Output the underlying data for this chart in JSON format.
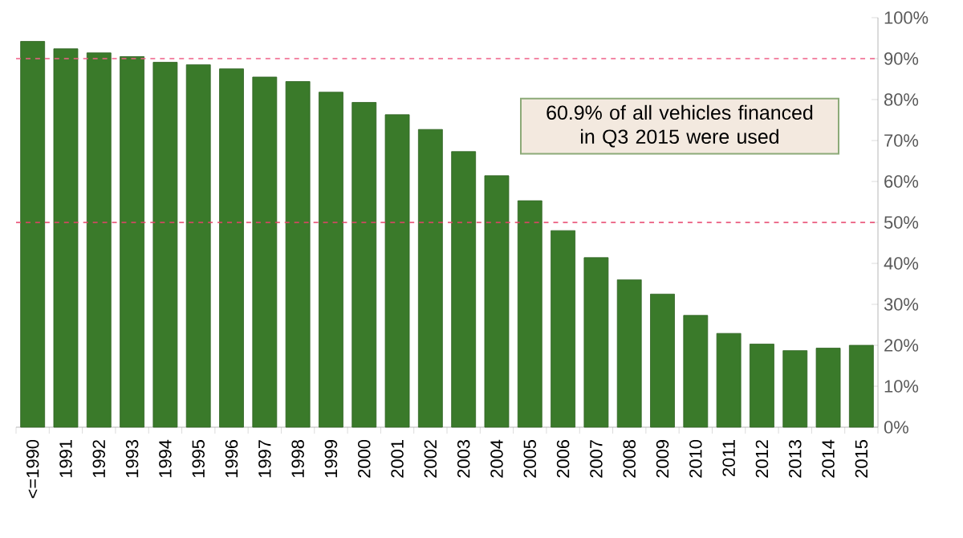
{
  "chart_data": {
    "type": "bar",
    "categories": [
      "<=1990",
      "1991",
      "1992",
      "1993",
      "1994",
      "1995",
      "1996",
      "1997",
      "1998",
      "1999",
      "2000",
      "2001",
      "2002",
      "2003",
      "2004",
      "2005",
      "2006",
      "2007",
      "2008",
      "2009",
      "2010",
      "2011",
      "2012",
      "2013",
      "2014",
      "2015"
    ],
    "values": [
      94.2,
      92.4,
      91.4,
      90.5,
      89.1,
      88.5,
      87.5,
      85.5,
      84.4,
      81.8,
      79.3,
      76.3,
      72.7,
      67.3,
      61.4,
      55.3,
      48.0,
      41.4,
      36.0,
      32.5,
      27.3,
      22.9,
      20.3,
      18.7,
      19.3,
      20.0
    ],
    "color": "#3a7a2a",
    "ylim": [
      0,
      100
    ],
    "yticks": [
      {
        "value": 0,
        "label": "0%"
      },
      {
        "value": 10,
        "label": "10%"
      },
      {
        "value": 20,
        "label": "20%"
      },
      {
        "value": 30,
        "label": "30%"
      },
      {
        "value": 40,
        "label": "40%"
      },
      {
        "value": 50,
        "label": "50%"
      },
      {
        "value": 60,
        "label": "60%"
      },
      {
        "value": 70,
        "label": "70%"
      },
      {
        "value": 80,
        "label": "80%"
      },
      {
        "value": 90,
        "label": "90%"
      },
      {
        "value": 100,
        "label": "100%"
      }
    ],
    "ref_lines": [
      {
        "axis": "y",
        "value": 90,
        "color": "#f06088",
        "line_style": "dashed"
      },
      {
        "axis": "y",
        "value": 50,
        "color": "#e8406a",
        "line_style": "dashed"
      }
    ],
    "annotations": [
      "60.9% of all vehicles financed in Q3 2015 were used"
    ]
  }
}
